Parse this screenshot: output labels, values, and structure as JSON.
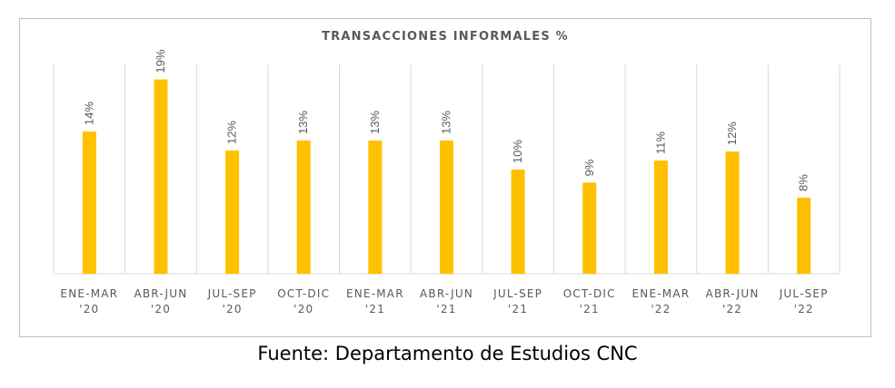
{
  "chart_data": {
    "type": "bar",
    "title": "TRANSACCIONES INFORMALES %",
    "categories": [
      [
        "ENE-MAR",
        "'20"
      ],
      [
        "ABR-JUN",
        "'20"
      ],
      [
        "JUL-SEP",
        "'20"
      ],
      [
        "OCT-DIC",
        "'20"
      ],
      [
        "ENE-MAR",
        "'21"
      ],
      [
        "ABR-JUN",
        "'21"
      ],
      [
        "JUL-SEP",
        "'21"
      ],
      [
        "OCT-DIC",
        "'21"
      ],
      [
        "ENE-MAR",
        "'22"
      ],
      [
        "ABR-JUN",
        "'22"
      ],
      [
        "JUL-SEP",
        "'22"
      ]
    ],
    "values": [
      14.2,
      19.4,
      12.3,
      13.3,
      13.3,
      13.3,
      10.4,
      9.1,
      11.3,
      12.2,
      7.6
    ],
    "data_labels": [
      "14%",
      "19%",
      "12%",
      "13%",
      "13%",
      "13%",
      "10%",
      "9%",
      "11%",
      "12%",
      "8%"
    ],
    "ylim": [
      0,
      20
    ],
    "grid": "vertical category dividers",
    "legend": "none",
    "bar_color": "#ffc000",
    "text_color": "#595959",
    "grid_color": "#d9d9d9"
  },
  "source": "Fuente: Departamento de Estudios CNC"
}
